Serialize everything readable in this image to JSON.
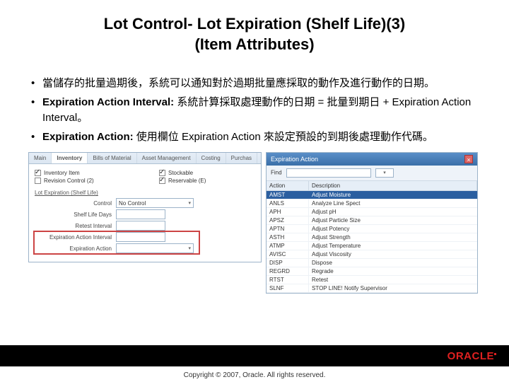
{
  "title_line1": "Lot Control- Lot Expiration (Shelf Life)(3)",
  "title_line2": "(Item Attributes)",
  "bullets": [
    "當儲存的批量過期後，系統可以通知對於過期批量應採取的動作及進行動作的日期。",
    "Expiration Action Interval:  系統計算採取處理動作的日期 = 批量到期日 + Expiration Action Interval。",
    "Expiration Action:  使用欄位 Expiration Action 來設定預設的到期後處理動作代碼。"
  ],
  "bullet_bold_prefix": [
    "",
    "Expiration Action Interval:",
    "Expiration Action:"
  ],
  "left_panel": {
    "tabs": [
      "Main",
      "Inventory",
      "Bills of Material",
      "Asset Management",
      "Costing",
      "Purchas"
    ],
    "active_tab_index": 1,
    "checkboxes_left": [
      {
        "label": "Inventory Item",
        "checked": true
      },
      {
        "label": "Revision Control (2)",
        "checked": false
      }
    ],
    "checkboxes_right": [
      {
        "label": "Stockable",
        "checked": true
      },
      {
        "label": "Reservable (E)",
        "checked": true
      }
    ],
    "section": "Lot Expiration (Shelf Life)",
    "rows": [
      {
        "label": "Control",
        "value": "No Control",
        "dropdown": true
      },
      {
        "label": "Shelf Life Days",
        "value": "",
        "dropdown": false
      },
      {
        "label": "Retest Interval",
        "value": "",
        "dropdown": false
      },
      {
        "label": "Expiration Action Interval",
        "value": "",
        "dropdown": false
      },
      {
        "label": "Expiration Action",
        "value": "",
        "dropdown": true
      }
    ],
    "highlight_rows": [
      3,
      4
    ],
    "colors": {
      "border": "#9cb3c9",
      "highlight": "#cc4444"
    }
  },
  "right_panel": {
    "window_title": "Expiration Action",
    "search_label": "Find",
    "grid_headers": [
      "Action",
      "Description"
    ],
    "selected_row": 0,
    "rows": [
      [
        "AMST",
        "Adjust Moisture"
      ],
      [
        "ANLS",
        "Analyze Line Spect"
      ],
      [
        "APH",
        "Adjust pH"
      ],
      [
        "APSZ",
        "Adjust Particle Size"
      ],
      [
        "APTN",
        "Adjust Potency"
      ],
      [
        "ASTH",
        "Adjust Strength"
      ],
      [
        "ATMP",
        "Adjust Temperature"
      ],
      [
        "AVISC",
        "Adjust Viscosity"
      ],
      [
        "DISP",
        "Dispose"
      ],
      [
        "REGRD",
        "Regrade"
      ],
      [
        "RTST",
        "Retest"
      ],
      [
        "SLNF",
        "STOP LINE! Notify Supervisor"
      ]
    ]
  },
  "footer": {
    "logo_text": "ORACLE",
    "copyright": "Copyright © 2007, Oracle. All rights reserved."
  },
  "colors": {
    "logo": "#e02020",
    "footer_bg": "#000000",
    "panel_border": "#9cb3c9"
  }
}
